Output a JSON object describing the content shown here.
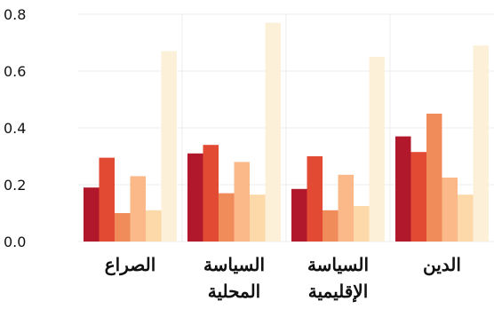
{
  "chart_data": {
    "type": "bar",
    "categories": [
      [
        "الصراع"
      ],
      [
        "السياسة",
        "المحلية"
      ],
      [
        "السياسة",
        "الإقليمية"
      ],
      [
        "الدين"
      ]
    ],
    "series": [
      {
        "values": [
          0.19,
          0.31,
          0.185,
          0.37
        ]
      },
      {
        "values": [
          0.295,
          0.34,
          0.3,
          0.315
        ]
      },
      {
        "values": [
          0.1,
          0.17,
          0.11,
          0.45
        ]
      },
      {
        "values": [
          0.23,
          0.28,
          0.235,
          0.225
        ]
      },
      {
        "values": [
          0.11,
          0.165,
          0.125,
          0.165
        ]
      },
      {
        "values": [
          0.67,
          0.77,
          0.65,
          0.69
        ]
      }
    ],
    "colors": [
      "#b2182b",
      "#e34a33",
      "#f08c5a",
      "#fbb989",
      "#fdd8a8",
      "#fdf0d9"
    ],
    "ylim": [
      0,
      0.8
    ],
    "yticks": [
      "0.0",
      "0.2",
      "0.4",
      "0.6",
      "0.8"
    ],
    "grid": true,
    "legend": "none"
  }
}
